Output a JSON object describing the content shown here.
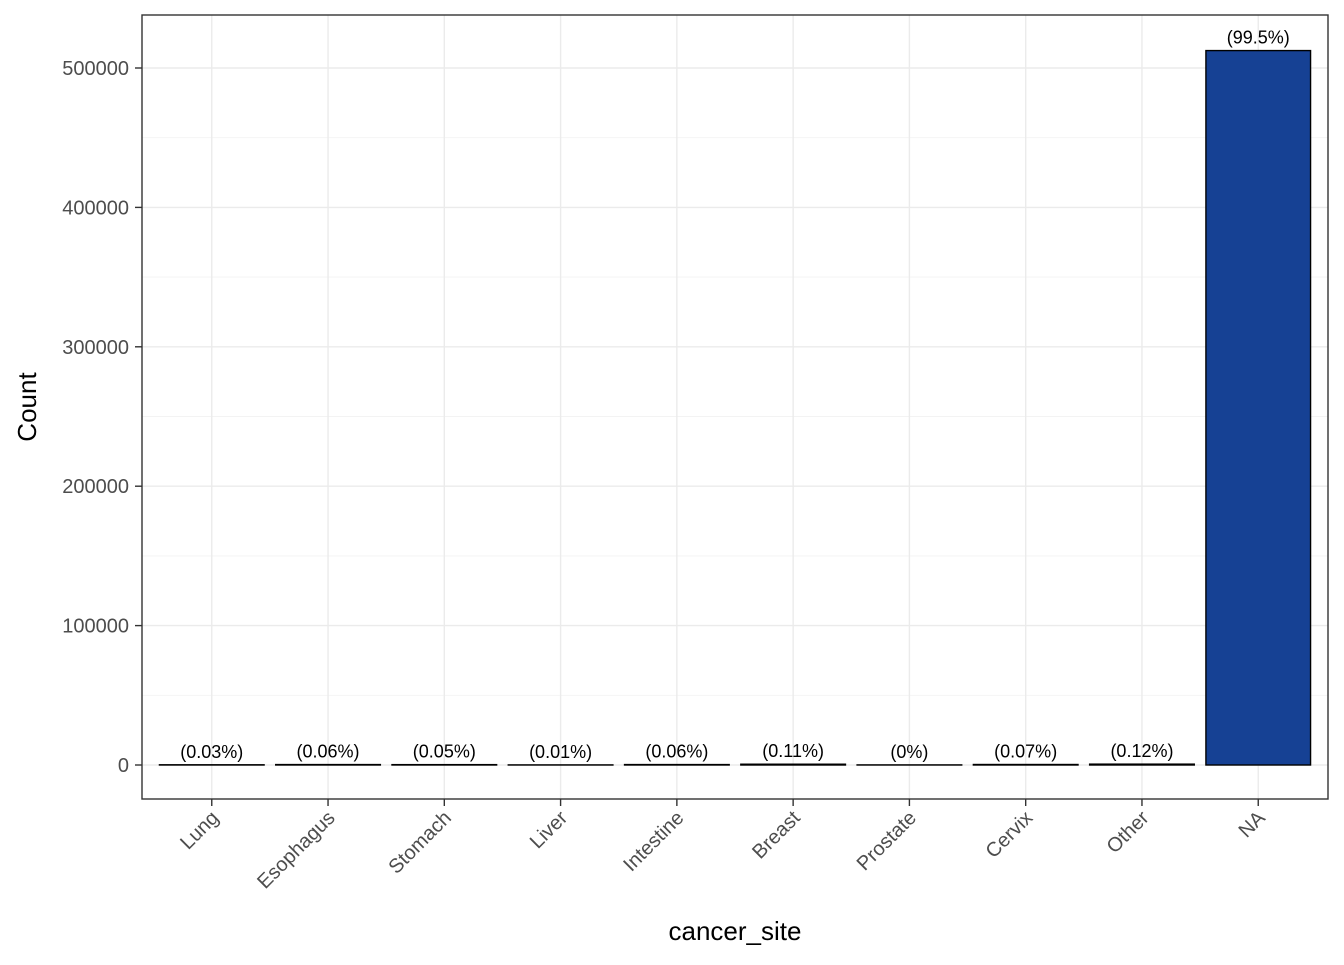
{
  "chart_data": {
    "type": "bar",
    "xlabel": "cancer_site",
    "ylabel": "Count",
    "categories": [
      "Lung",
      "Esophagus",
      "Stomach",
      "Liver",
      "Intestine",
      "Breast",
      "Prostate",
      "Cervix",
      "Other",
      "NA"
    ],
    "values": [
      155,
      310,
      260,
      50,
      310,
      565,
      0,
      360,
      620,
      512500
    ],
    "labels": [
      "(0.03%)",
      "(0.06%)",
      "(0.05%)",
      "(0.01%)",
      "(0.06%)",
      "(0.11%)",
      "(0%)",
      "(0.07%)",
      "(0.12%)",
      "(99.5%)"
    ],
    "ylim": [
      -25000,
      538000
    ],
    "yticks": [
      0,
      100000,
      200000,
      300000,
      400000,
      500000
    ],
    "ytick_labels": [
      "0",
      "100000",
      "200000",
      "300000",
      "400000",
      "500000"
    ],
    "grid": true,
    "bar_color": "#164194",
    "bar_outline": "#000000"
  }
}
